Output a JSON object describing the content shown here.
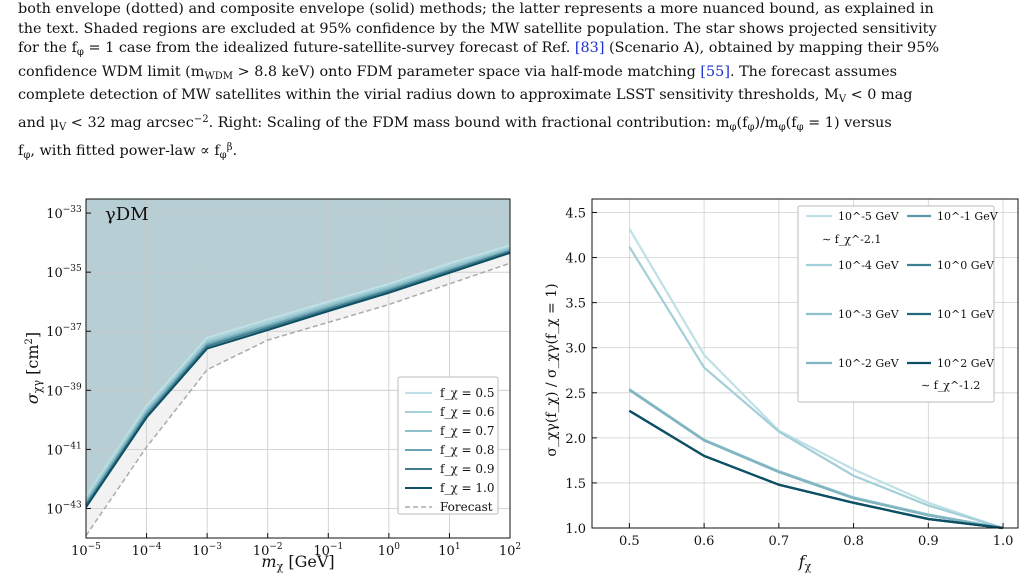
{
  "caption": {
    "line0": "both envelope (dotted) and composite envelope (solid) methods; the latter represents a more nuanced bound, as explained in",
    "line1": "the text. Shaded regions are excluded at 95% confidence by the MW satellite population. The star shows projected sensitivity",
    "line2a": "for the f",
    "line2b": " = 1 case from the idealized future-satellite-survey forecast of Ref. ",
    "line2c": "[83]",
    "line2d": " (Scenario A), obtained by mapping their 95%",
    "line3a": "confidence WDM limit (m",
    "line3b": " > 8.8 keV) onto FDM parameter space via half-mode matching ",
    "line3c": "[55]",
    "line3d": ". The forecast assumes",
    "line4": "complete detection of MW satellites within the virial radius down to approximate LSST sensitivity thresholds, M",
    "line4b": " < 0 mag",
    "line5a": "and μ",
    "line5b": " < 32 mag arcsec",
    "line5c": ". Right: Scaling of the FDM mass bound with fractional contribution: m",
    "line5d": "(f",
    "line5e": ")/m",
    "line5f": "(f",
    "line5g": " = 1) versus",
    "line6a": "f",
    "line6b": ", with fitted power-law ∝ f",
    "line6c": "."
  },
  "left_panel": {
    "label": "γDM",
    "xlabel": "m",
    "xlabel_sub": "χ",
    "xlabel_unit": "[GeV]",
    "ylabel": "σ",
    "ylabel_sub": "χγ",
    "ylabel_unit": "[cm",
    "ylabel_exp": "2",
    "ylabel_close": "]"
  },
  "right_panel": {
    "xlabel": "f",
    "xlabel_sub": "χ",
    "ylabel": "σ_χγ(f_χ) / σ_χγ(f_χ = 1)"
  },
  "chart_data": [
    {
      "type": "line",
      "x_scale": "log",
      "y_scale": "log",
      "xlim": [
        1e-05,
        100
      ],
      "ylim": [
        1e-44,
        3e-33
      ],
      "grid": true,
      "legend_position": "bottom-right",
      "x_ticks": [
        -5,
        -4,
        -3,
        -2,
        -1,
        0,
        1,
        2
      ],
      "y_ticks": [
        -43,
        -41,
        -39,
        -37,
        -35,
        -33
      ],
      "shading": "above curves (excluded region)",
      "series": [
        {
          "name": "f_χ = 0.5",
          "color": "#bfe0e6",
          "x": [
            1e-05,
            0.0001,
            0.001,
            0.01,
            0.1,
            1,
            10,
            100
          ],
          "y": [
            2.5e-43,
            3e-40,
            6e-38,
            2.5e-37,
            1e-36,
            4e-36,
            2e-35,
            8e-35
          ]
        },
        {
          "name": "f_χ = 0.6",
          "color": "#a5d0d8",
          "x": [
            1e-05,
            0.0001,
            0.001,
            0.01,
            0.1,
            1,
            10,
            100
          ],
          "y": [
            2.1e-43,
            2.4e-40,
            5e-38,
            2e-37,
            8.5e-37,
            3.4e-36,
            1.6e-35,
            7e-35
          ]
        },
        {
          "name": "f_χ = 0.7",
          "color": "#8fc1cc",
          "x": [
            1e-05,
            0.0001,
            0.001,
            0.01,
            0.1,
            1,
            10,
            100
          ],
          "y": [
            1.8e-43,
            2e-40,
            4.2e-38,
            1.7e-37,
            7.3e-37,
            3e-36,
            1.4e-35,
            6.2e-35
          ]
        },
        {
          "name": "f_χ = 0.8",
          "color": "#6aa4b2",
          "x": [
            1e-05,
            0.0001,
            0.001,
            0.01,
            0.1,
            1,
            10,
            100
          ],
          "y": [
            1.5e-43,
            1.7e-40,
            3.6e-38,
            1.5e-37,
            6.3e-37,
            2.6e-36,
            1.2e-35,
            5.5e-35
          ]
        },
        {
          "name": "f_χ = 0.9",
          "color": "#3d7b8d",
          "x": [
            1e-05,
            0.0001,
            0.001,
            0.01,
            0.1,
            1,
            10,
            100
          ],
          "y": [
            1.3e-43,
            1.4e-40,
            3.1e-38,
            1.3e-37,
            5.5e-37,
            2.3e-36,
            1.1e-35,
            5e-35
          ]
        },
        {
          "name": "f_χ = 1.0",
          "color": "#0e4f63",
          "x": [
            1e-05,
            0.0001,
            0.001,
            0.01,
            0.1,
            1,
            10,
            100
          ],
          "y": [
            1.1e-43,
            1.2e-40,
            2.6e-38,
            1.1e-37,
            4.8e-37,
            2e-36,
            9.5e-36,
            4.5e-35
          ]
        },
        {
          "name": "Forecast",
          "color": "#aaaaaa",
          "style": "dashed",
          "x": [
            1e-05,
            0.0001,
            0.001,
            0.01,
            0.1,
            1,
            10,
            100
          ],
          "y": [
            1.2e-44,
            1.2e-41,
            5e-39,
            5e-38,
            2e-37,
            8e-37,
            4e-36,
            2e-35
          ]
        }
      ]
    },
    {
      "type": "line",
      "xlim": [
        0.45,
        1.02
      ],
      "ylim": [
        1.0,
        4.65
      ],
      "grid": true,
      "legend_position": "top-right",
      "x_ticks": [
        0.5,
        0.6,
        0.7,
        0.8,
        0.9,
        1.0
      ],
      "y_ticks": [
        1.0,
        1.5,
        2.0,
        2.5,
        3.0,
        3.5,
        4.0,
        4.5
      ],
      "x": [
        0.5,
        0.6,
        0.7,
        0.8,
        0.9,
        1.0
      ],
      "series": [
        {
          "name": "10^-5 GeV",
          "color": "#bfe0e6",
          "values": [
            4.32,
            2.92,
            2.08,
            1.65,
            1.28,
            1.0
          ]
        },
        {
          "name": "10^-4 GeV",
          "color": "#a3cfd8",
          "values": [
            4.12,
            2.78,
            2.07,
            1.58,
            1.25,
            1.0
          ]
        },
        {
          "name": "10^-3 GeV",
          "color": "#8fc1cc",
          "values": [
            2.54,
            1.98,
            1.63,
            1.34,
            1.15,
            1.0
          ]
        },
        {
          "name": "10^-2 GeV",
          "color": "#7fb4c0",
          "values": [
            2.53,
            1.97,
            1.62,
            1.33,
            1.14,
            1.0
          ]
        },
        {
          "name": "10^-1 GeV",
          "color": "#5e98a8",
          "values": [
            2.3,
            1.8,
            1.48,
            1.28,
            1.1,
            1.0
          ]
        },
        {
          "name": "10^0 GeV",
          "color": "#3e7f92",
          "values": [
            2.3,
            1.8,
            1.48,
            1.28,
            1.1,
            1.0
          ]
        },
        {
          "name": "10^1 GeV",
          "color": "#22687c",
          "values": [
            2.3,
            1.8,
            1.48,
            1.28,
            1.1,
            1.0
          ]
        },
        {
          "name": "10^2 GeV",
          "color": "#0e4f63",
          "values": [
            2.3,
            1.8,
            1.48,
            1.28,
            1.1,
            1.0
          ]
        }
      ],
      "fit_labels": [
        {
          "text": "∼ f_χ^-2.1",
          "color": "#3a8ea3"
        },
        {
          "text": "∼ f_χ^-1.2",
          "color": "#3a8ea3"
        }
      ]
    }
  ]
}
